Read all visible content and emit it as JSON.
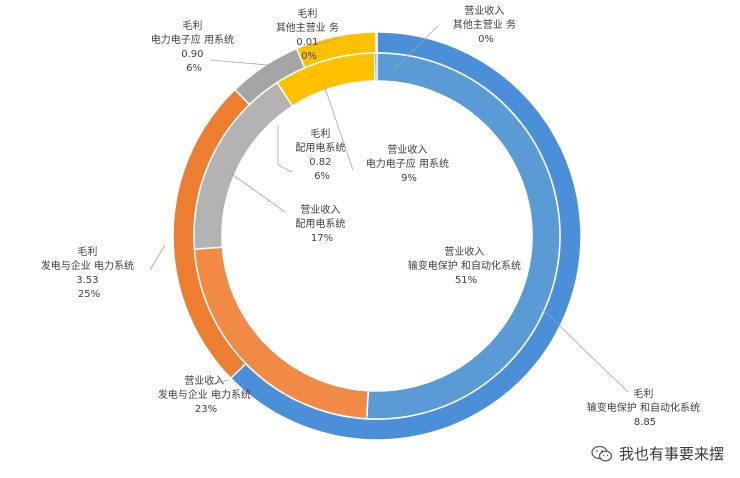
{
  "chart_data": {
    "type": "pie",
    "subtype": "double-doughnut",
    "title": "",
    "rings": [
      {
        "name": "毛利",
        "position": "outer",
        "slices": [
          {
            "label": "输变电保护 和自动化系统",
            "value": 8.85,
            "percent_text": "",
            "color": "#4a8fd8"
          },
          {
            "label": "发电与企业 电力系统",
            "value": 3.53,
            "percent_text": "25%",
            "color": "#ed7d31"
          },
          {
            "label": "配用电系统",
            "value": 0.82,
            "percent_text": "6%",
            "color": "#a5a5a5"
          },
          {
            "label": "电力电子应 用系统",
            "value": 0.9,
            "percent_text": "6%",
            "color": "#ffc000"
          },
          {
            "label": "其他主营业 务",
            "value": 0.01,
            "percent_text": "0%",
            "color": "#5b9bd5"
          }
        ]
      },
      {
        "name": "营业收入",
        "position": "inner",
        "slices": [
          {
            "label": "输变电保护 和自动化系统",
            "value": 51,
            "percent_text": "51%",
            "color": "#5b9bd5"
          },
          {
            "label": "发电与企业 电力系统",
            "value": 23,
            "percent_text": "23%",
            "color": "#f08a45"
          },
          {
            "label": "配用电系统",
            "value": 17,
            "percent_text": "17%",
            "color": "#b3b3b3"
          },
          {
            "label": "电力电子应 用系统",
            "value": 9,
            "percent_text": "9%",
            "color": "#ffc000"
          },
          {
            "label": "其他主营业 务",
            "value": 0.2,
            "percent_text": "0%",
            "color": "#4472c4"
          }
        ]
      }
    ],
    "start": "clockwise from 12 o'clock",
    "legend": "none"
  },
  "labels": {
    "outer_series": "毛利",
    "inner_series": "营业收入",
    "o0_cat": "输变电保护 和自动化系统",
    "o0_val": "8.85",
    "o1_cat": "发电与企业 电力系统",
    "o1_val": "3.53",
    "o1_pct": "25%",
    "o2_cat": "配用电系统",
    "o2_val": "0.82",
    "o2_pct": "6%",
    "o3_cat": "电力电子应 用系统",
    "o3_val": "0.90",
    "o3_pct": "6%",
    "o4_cat": "其他主营业 务",
    "o4_val": "0.01",
    "o4_pct": "0%",
    "i0_cat": "输变电保护 和自动化系统",
    "i0_pct": "51%",
    "i1_cat": "发电与企业 电力系统",
    "i1_pct": "23%",
    "i2_cat": "配用电系统",
    "i2_pct": "17%",
    "i3_cat": "电力电子应 用系统",
    "i3_pct": "9%",
    "i4_cat": "其他主营业 务",
    "i4_pct": "0%"
  },
  "watermark": {
    "text": "我也有事要来摆",
    "icon": "wechat-icon"
  }
}
